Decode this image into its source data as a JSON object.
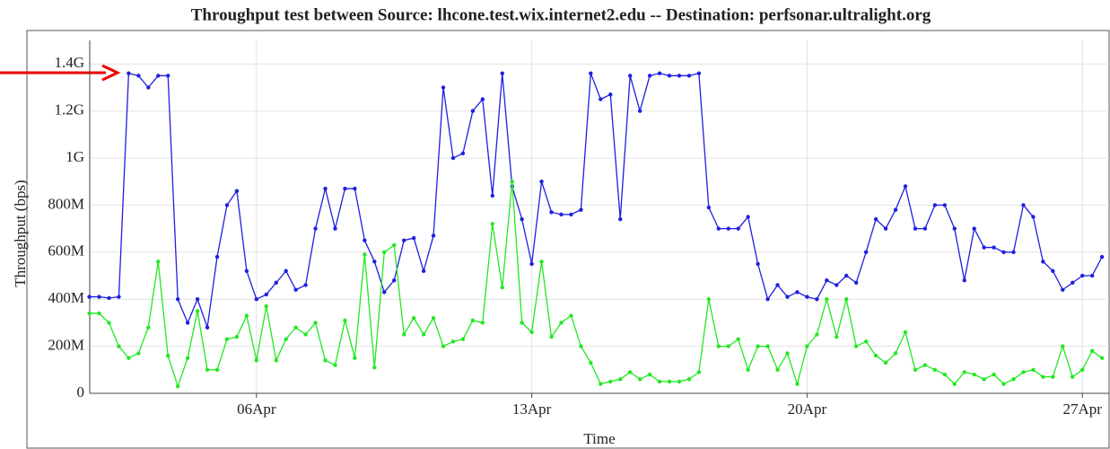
{
  "chart_data": {
    "type": "line",
    "title": "Throughput test between Source: lhcone.test.wix.internet2.edu -- Destination: perfsonar.ultralight.org",
    "x_label": "Time",
    "y_label": "Throughput (bps)",
    "x": [
      1.75,
      2.0,
      2.25,
      2.5,
      2.75,
      3.0,
      3.25,
      3.5,
      3.75,
      4.0,
      4.25,
      4.5,
      4.75,
      5.0,
      5.25,
      5.5,
      5.75,
      6.0,
      6.25,
      6.5,
      6.75,
      7.0,
      7.25,
      7.5,
      7.75,
      8.0,
      8.25,
      8.5,
      8.75,
      9.0,
      9.25,
      9.5,
      9.75,
      10.0,
      10.25,
      10.5,
      10.75,
      11.0,
      11.25,
      11.5,
      11.75,
      12.0,
      12.25,
      12.5,
      12.75,
      13.0,
      13.25,
      13.5,
      13.75,
      14.0,
      14.25,
      14.5,
      14.75,
      15.0,
      15.25,
      15.5,
      15.75,
      16.0,
      16.25,
      16.5,
      16.75,
      17.0,
      17.25,
      17.5,
      17.75,
      18.0,
      18.25,
      18.5,
      18.75,
      19.0,
      19.25,
      19.5,
      19.75,
      20.0,
      20.25,
      20.5,
      20.75,
      21.0,
      21.25,
      21.5,
      21.75,
      22.0,
      22.25,
      22.5,
      22.75,
      23.0,
      23.25,
      23.5,
      23.75,
      24.0,
      24.25,
      24.5,
      24.75,
      25.0,
      25.25,
      25.5,
      25.75,
      26.0,
      26.25,
      26.5,
      26.75,
      27.0,
      27.25,
      27.5
    ],
    "series": [
      {
        "color": "#1f1fe0",
        "values": [
          410000000,
          410000000,
          405000000,
          410000000,
          1360000000,
          1350000000,
          1300000000,
          1350000000,
          1350000000,
          400000000,
          300000000,
          400000000,
          280000000,
          580000000,
          800000000,
          860000000,
          520000000,
          400000000,
          420000000,
          470000000,
          520000000,
          440000000,
          460000000,
          700000000,
          870000000,
          700000000,
          870000000,
          870000000,
          650000000,
          560000000,
          430000000,
          480000000,
          650000000,
          660000000,
          520000000,
          670000000,
          1300000000,
          1000000000,
          1020000000,
          1200000000,
          1250000000,
          840000000,
          1360000000,
          880000000,
          740000000,
          550000000,
          900000000,
          770000000,
          760000000,
          760000000,
          780000000,
          1360000000,
          1250000000,
          1270000000,
          740000000,
          1350000000,
          1200000000,
          1350000000,
          1360000000,
          1350000000,
          1350000000,
          1350000000,
          1360000000,
          790000000,
          700000000,
          700000000,
          700000000,
          750000000,
          550000000,
          400000000,
          460000000,
          410000000,
          430000000,
          410000000,
          400000000,
          480000000,
          460000000,
          500000000,
          470000000,
          600000000,
          740000000,
          700000000,
          780000000,
          880000000,
          700000000,
          700000000,
          800000000,
          800000000,
          700000000,
          480000000,
          700000000,
          620000000,
          620000000,
          600000000,
          600000000,
          800000000,
          750000000,
          560000000,
          520000000,
          440000000,
          470000000,
          500000000,
          500000000,
          580000000
        ]
      },
      {
        "color": "#22e822",
        "values": [
          340000000,
          340000000,
          300000000,
          200000000,
          150000000,
          170000000,
          280000000,
          560000000,
          160000000,
          30000000,
          150000000,
          350000000,
          100000000,
          100000000,
          230000000,
          240000000,
          330000000,
          140000000,
          370000000,
          140000000,
          230000000,
          280000000,
          250000000,
          300000000,
          140000000,
          120000000,
          310000000,
          150000000,
          590000000,
          110000000,
          600000000,
          630000000,
          250000000,
          320000000,
          250000000,
          320000000,
          200000000,
          220000000,
          230000000,
          310000000,
          300000000,
          720000000,
          450000000,
          900000000,
          300000000,
          260000000,
          560000000,
          240000000,
          300000000,
          330000000,
          200000000,
          130000000,
          40000000,
          50000000,
          60000000,
          90000000,
          60000000,
          80000000,
          50000000,
          50000000,
          50000000,
          60000000,
          90000000,
          400000000,
          200000000,
          200000000,
          230000000,
          100000000,
          200000000,
          200000000,
          100000000,
          170000000,
          40000000,
          200000000,
          250000000,
          400000000,
          240000000,
          400000000,
          200000000,
          220000000,
          160000000,
          130000000,
          170000000,
          260000000,
          100000000,
          120000000,
          100000000,
          80000000,
          40000000,
          90000000,
          80000000,
          60000000,
          80000000,
          40000000,
          60000000,
          90000000,
          100000000,
          70000000,
          70000000,
          200000000,
          70000000,
          100000000,
          180000000,
          150000000
        ]
      }
    ],
    "xlim": [
      1.76,
      27.68
    ],
    "xticks": [
      {
        "value": 6,
        "label": "06Apr"
      },
      {
        "value": 13,
        "label": "13Apr"
      },
      {
        "value": 20,
        "label": "20Apr"
      },
      {
        "value": 27,
        "label": "27Apr"
      }
    ],
    "ylim": [
      0,
      1500000000
    ],
    "yticks": [
      0,
      {
        "value": 200000000,
        "label": "200M"
      },
      {
        "value": 400000000,
        "label": "400M"
      },
      {
        "value": 600000000,
        "label": "600M"
      },
      {
        "value": 800000000,
        "label": "800M"
      },
      {
        "value": 1000000000,
        "label": "1G"
      },
      {
        "value": 1200000000,
        "label": "1.2G"
      },
      {
        "value": 1400000000,
        "label": "1.4G"
      }
    ],
    "grid": true
  }
}
